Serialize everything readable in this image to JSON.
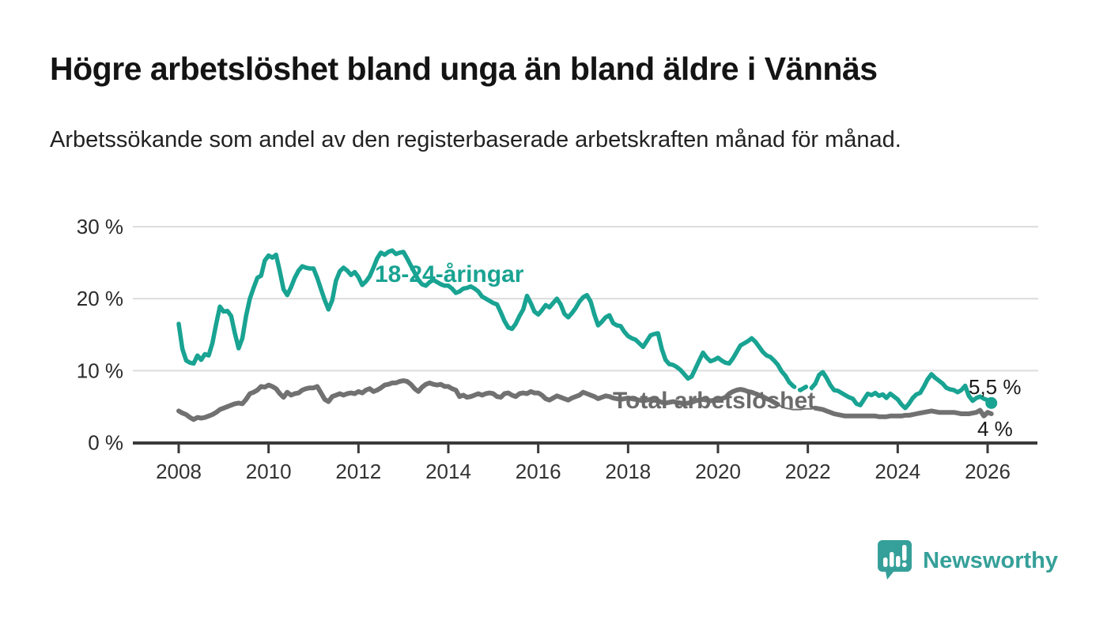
{
  "title": "Högre arbetslöshet bland unga än bland äldre i Vännäs",
  "subtitle": "Arbetssökande som andel av den registerbaserade arbetskraften månad för månad.",
  "branding": {
    "logo_text": "Newsworthy",
    "logo_color": "#35a099"
  },
  "colors": {
    "background": "#ffffff",
    "title": "#141414",
    "subtitle": "#222222",
    "grid": "#dcdcdc",
    "axis": "#3a3a3a",
    "tick_label": "#333333",
    "youth_line": "#19a392",
    "total_line": "#717171",
    "total_label": "#6b6b6b",
    "end_label": "#1a1a1a"
  },
  "chart_data": {
    "type": "line",
    "x_start_year": 2008,
    "x_interval": "monthly",
    "x_tick_labels": [
      "2008",
      "2010",
      "2012",
      "2014",
      "2016",
      "2018",
      "2020",
      "2022",
      "2024",
      "2026"
    ],
    "y_tick_labels": [
      "0 %",
      "10 %",
      "20 %",
      "30 %"
    ],
    "y_ticks": [
      0,
      10,
      20,
      30
    ],
    "ylim": [
      0,
      30
    ],
    "grid": true,
    "legend_position": "inline-labels",
    "series": [
      {
        "name": "18-24-åringar",
        "color": "#19a392",
        "end_label": "5,5 %",
        "last_value": 5.5,
        "dashed_segment": [
          163,
          170
        ],
        "values": [
          16.5,
          13.0,
          11.4,
          11.1,
          11.0,
          12.1,
          11.5,
          12.3,
          12.1,
          13.8,
          16.5,
          18.9,
          18.2,
          18.3,
          17.6,
          15.2,
          13.1,
          14.5,
          17.6,
          20.0,
          21.5,
          22.9,
          23.2,
          25.3,
          26.0,
          25.7,
          26.1,
          23.8,
          21.3,
          20.5,
          21.6,
          22.9,
          23.9,
          24.5,
          24.3,
          24.2,
          24.2,
          22.9,
          21.3,
          19.8,
          18.5,
          19.8,
          22.5,
          23.8,
          24.3,
          23.9,
          23.3,
          23.7,
          23.0,
          21.9,
          22.4,
          23.1,
          24.3,
          25.6,
          26.4,
          26.1,
          26.5,
          26.7,
          26.2,
          26.4,
          26.5,
          25.6,
          24.6,
          23.6,
          22.6,
          22.0,
          21.8,
          22.3,
          22.6,
          22.3,
          22.0,
          21.8,
          21.8,
          21.4,
          20.8,
          21.0,
          21.4,
          21.5,
          21.7,
          21.4,
          21.0,
          20.3,
          20.0,
          19.7,
          19.4,
          19.2,
          18.1,
          16.9,
          16.0,
          15.8,
          16.5,
          17.6,
          18.5,
          20.4,
          19.4,
          18.2,
          17.8,
          18.4,
          19.1,
          18.8,
          19.4,
          20.0,
          19.2,
          17.9,
          17.4,
          18.0,
          18.7,
          19.6,
          20.2,
          20.5,
          19.6,
          17.8,
          16.3,
          16.8,
          17.4,
          17.7,
          16.6,
          16.3,
          16.2,
          15.4,
          14.8,
          14.5,
          14.3,
          13.8,
          13.3,
          14.1,
          14.9,
          15.1,
          15.2,
          13.0,
          11.5,
          10.9,
          10.8,
          10.5,
          10.1,
          9.5,
          8.9,
          9.2,
          10.3,
          11.4,
          12.5,
          11.8,
          11.3,
          11.5,
          11.8,
          11.4,
          11.1,
          11.0,
          11.7,
          12.6,
          13.5,
          13.8,
          14.1,
          14.5,
          14.0,
          13.3,
          12.6,
          12.1,
          11.9,
          11.4,
          10.8,
          9.9,
          9.3,
          8.4,
          7.9,
          7.5,
          7.3,
          7.6,
          7.9,
          7.6,
          8.2,
          9.4,
          9.8,
          9.0,
          8.0,
          7.3,
          7.2,
          6.9,
          6.6,
          6.3,
          6.1,
          5.4,
          5.2,
          6.0,
          6.8,
          6.6,
          6.9,
          6.5,
          6.7,
          6.2,
          6.8,
          6.4,
          6.0,
          5.3,
          4.8,
          5.4,
          6.2,
          6.7,
          6.9,
          7.8,
          8.8,
          9.5,
          9.0,
          8.6,
          8.2,
          7.6,
          7.4,
          7.3,
          7.0,
          7.3,
          7.9,
          6.5,
          5.8,
          6.2,
          6.4,
          6.1,
          5.9,
          5.5
        ]
      },
      {
        "name": "Total arbetslöshet",
        "color": "#717171",
        "end_label": "4 %",
        "last_value": 4.0,
        "thin_segment": [
          160,
          170
        ],
        "values": [
          4.4,
          4.1,
          3.9,
          3.5,
          3.2,
          3.5,
          3.4,
          3.5,
          3.7,
          3.9,
          4.2,
          4.6,
          4.8,
          5.0,
          5.2,
          5.4,
          5.5,
          5.4,
          6.0,
          6.8,
          7.0,
          7.3,
          7.8,
          7.7,
          8.0,
          7.8,
          7.5,
          6.8,
          6.3,
          7.0,
          6.6,
          6.8,
          6.9,
          7.3,
          7.5,
          7.6,
          7.6,
          7.8,
          6.9,
          6.0,
          5.7,
          6.4,
          6.6,
          6.8,
          6.6,
          6.8,
          6.9,
          6.8,
          7.1,
          6.9,
          7.3,
          7.5,
          7.1,
          7.3,
          7.6,
          8.0,
          8.1,
          8.3,
          8.3,
          8.5,
          8.6,
          8.5,
          8.1,
          7.5,
          7.1,
          7.7,
          8.1,
          8.3,
          8.1,
          8.0,
          8.1,
          7.8,
          7.8,
          7.5,
          7.3,
          6.4,
          6.6,
          6.3,
          6.4,
          6.6,
          6.8,
          6.6,
          6.8,
          6.9,
          6.8,
          6.4,
          6.3,
          6.8,
          6.9,
          6.6,
          6.4,
          6.8,
          6.9,
          6.8,
          7.1,
          6.9,
          6.9,
          6.6,
          6.1,
          5.9,
          6.2,
          6.5,
          6.3,
          6.1,
          5.9,
          6.2,
          6.4,
          6.6,
          7.0,
          6.8,
          6.6,
          6.4,
          6.1,
          6.3,
          6.5,
          6.4,
          6.2,
          6.1,
          6.0,
          6.1,
          6.2,
          6.1,
          6.0,
          5.9,
          5.8,
          5.9,
          6.0,
          5.9,
          5.8,
          5.6,
          5.5,
          5.6,
          5.7,
          5.6,
          5.5,
          5.4,
          5.5,
          5.6,
          5.8,
          5.9,
          6.0,
          5.9,
          5.8,
          5.9,
          6.0,
          6.1,
          6.3,
          6.8,
          7.1,
          7.3,
          7.4,
          7.3,
          7.1,
          7.0,
          6.8,
          6.6,
          6.4,
          6.1,
          5.9,
          5.6,
          5.3,
          5.0,
          4.8,
          4.7,
          4.6,
          4.6,
          4.6,
          4.7,
          4.7,
          4.7,
          4.8,
          4.7,
          4.6,
          4.4,
          4.2,
          4.0,
          3.9,
          3.8,
          3.7,
          3.7,
          3.7,
          3.7,
          3.7,
          3.7,
          3.7,
          3.7,
          3.7,
          3.6,
          3.6,
          3.6,
          3.7,
          3.7,
          3.7,
          3.7,
          3.8,
          3.8,
          3.9,
          4.0,
          4.1,
          4.2,
          4.3,
          4.4,
          4.3,
          4.2,
          4.2,
          4.2,
          4.2,
          4.2,
          4.1,
          4.0,
          4.0,
          4.0,
          4.1,
          4.2,
          4.5,
          3.7,
          4.2,
          4.0
        ]
      }
    ]
  }
}
